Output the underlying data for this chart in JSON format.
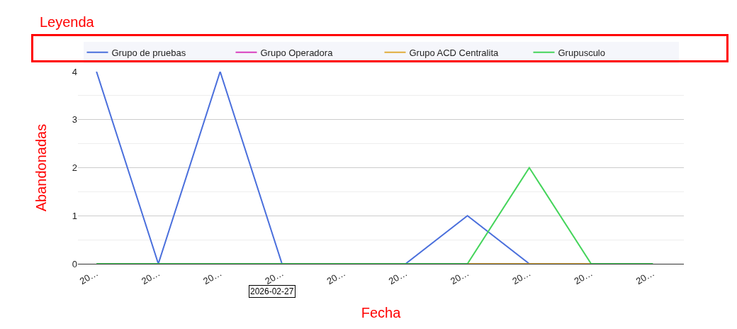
{
  "chart_data": {
    "type": "line",
    "legend_title": "Leyenda",
    "xlabel": "Fecha",
    "ylabel": "Abandonadas",
    "categories": [
      "20…",
      "20…",
      "20…",
      "20…",
      "20…",
      "20…",
      "20…",
      "20…",
      "20…",
      "20…"
    ],
    "series": [
      {
        "name": "Grupo de pruebas",
        "color": "#4a6fdc",
        "values": [
          4,
          0,
          4,
          0,
          null,
          0,
          1,
          0,
          null,
          null
        ]
      },
      {
        "name": "Grupo Operadora",
        "color": "#d83fbf",
        "values": [
          null,
          null,
          null,
          null,
          null,
          null,
          null,
          null,
          null,
          null
        ]
      },
      {
        "name": "Grupo ACD Centralita",
        "color": "#e0ac3a",
        "values": [
          null,
          null,
          null,
          null,
          null,
          null,
          0,
          0,
          0,
          null
        ]
      },
      {
        "name": "Grupusculo",
        "color": "#44d45a",
        "values": [
          0,
          0,
          0,
          0,
          0,
          0,
          0,
          2,
          0,
          0
        ]
      }
    ],
    "annotations": [
      "2026-02-27"
    ],
    "ylim": [
      0,
      4
    ],
    "yticks": [
      0,
      1,
      2,
      3,
      4
    ],
    "grid": "y",
    "legend": "top",
    "marker": "none",
    "line_style": "solid"
  }
}
